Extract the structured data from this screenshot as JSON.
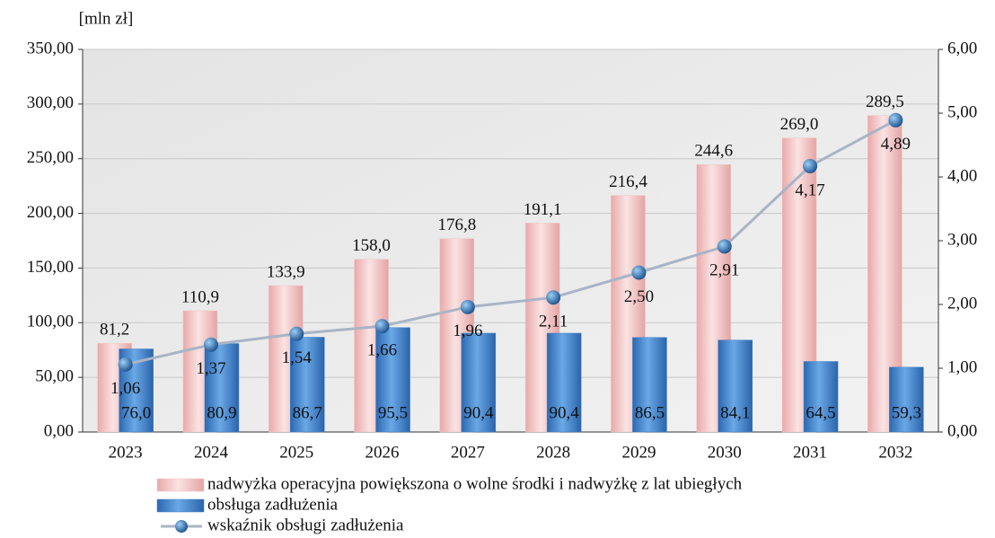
{
  "chart_data": {
    "type": "bar_line",
    "y_axis_label": "[mln zł]",
    "categories": [
      "2023",
      "2024",
      "2025",
      "2026",
      "2027",
      "2028",
      "2029",
      "2030",
      "2031",
      "2032"
    ],
    "series": [
      {
        "name": "nadwyżka operacyjna powiększona o wolne środki i nadwyżkę z lat ubiegłych",
        "type": "bar",
        "color": "#f2c4c4",
        "values": [
          81.2,
          110.9,
          133.9,
          158.0,
          176.8,
          191.1,
          216.4,
          244.6,
          269.0,
          289.5
        ],
        "value_labels": [
          "81,2",
          "110,9",
          "133,9",
          "158,0",
          "176,8",
          "191,1",
          "216,4",
          "244,6",
          "269,0",
          "289,5"
        ]
      },
      {
        "name": "obsługa zadłużenia",
        "type": "bar",
        "color": "#3f7fc8",
        "values": [
          76.0,
          80.9,
          86.7,
          95.5,
          90.4,
          90.4,
          86.5,
          84.1,
          64.5,
          59.3
        ],
        "value_labels": [
          "76,0",
          "80,9",
          "86,7",
          "95,5",
          "90,4",
          "90,4",
          "86,5",
          "84,1",
          "64,5",
          "59,3"
        ]
      },
      {
        "name": "wskaźnik obsługi zadłużenia",
        "type": "line",
        "axis": "y2",
        "color": "#a9b4c6",
        "values": [
          1.06,
          1.37,
          1.54,
          1.66,
          1.96,
          2.11,
          2.5,
          2.91,
          4.17,
          4.89
        ],
        "value_labels": [
          "1,06",
          "1,37",
          "1,54",
          "1,66",
          "1,96",
          "2,11",
          "2,50",
          "2,91",
          "4,17",
          "4,89"
        ]
      }
    ],
    "ylim": [
      0,
      350
    ],
    "yticks": [
      {
        "value": 0,
        "label": "0,00"
      },
      {
        "value": 50,
        "label": "50,00"
      },
      {
        "value": 100,
        "label": "100,00"
      },
      {
        "value": 150,
        "label": "150,00"
      },
      {
        "value": 200,
        "label": "200,00"
      },
      {
        "value": 250,
        "label": "250,00"
      },
      {
        "value": 300,
        "label": "300,00"
      },
      {
        "value": 350,
        "label": "350,00"
      }
    ],
    "y2lim": [
      0,
      6
    ],
    "y2ticks": [
      {
        "value": 0,
        "label": "0,00"
      },
      {
        "value": 1,
        "label": "1,00"
      },
      {
        "value": 2,
        "label": "2,00"
      },
      {
        "value": 3,
        "label": "3,00"
      },
      {
        "value": 4,
        "label": "4,00"
      },
      {
        "value": 5,
        "label": "5,00"
      },
      {
        "value": 6,
        "label": "6,00"
      }
    ],
    "grid": true,
    "legend": "bottom"
  }
}
